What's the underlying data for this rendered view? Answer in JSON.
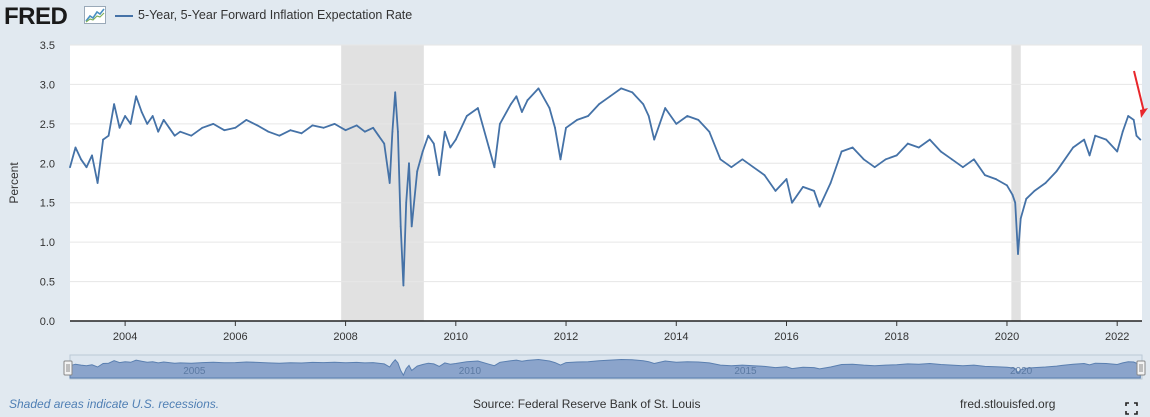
{
  "header": {
    "logo_text": "FRED",
    "legend_label": "5-Year, 5-Year Forward Inflation Expectation Rate"
  },
  "footer": {
    "recession_note": "Shaded areas indicate U.S. recessions.",
    "source": "Source: Federal Reserve Bank of St. Louis",
    "site": "fred.stlouisfed.org"
  },
  "colors": {
    "line": "#4572a7",
    "recession": "#e1e1e1",
    "annotation_arrow": "#e8262b",
    "navigator_fill": "#7c98c4"
  },
  "icons": [
    "fred-logo-graph-icon",
    "fullscreen-icon",
    "navigator-handle-icon"
  ],
  "chart_data": {
    "type": "line",
    "title": "5-Year, 5-Year Forward Inflation Expectation Rate",
    "xlabel": "",
    "ylabel": "Percent",
    "xlim": [
      2003.0,
      2022.45
    ],
    "ylim": [
      0.0,
      3.5
    ],
    "y_ticks": [
      {
        "v": 0.0,
        "label": "0.0"
      },
      {
        "v": 0.5,
        "label": "0.5"
      },
      {
        "v": 1.0,
        "label": "1.0"
      },
      {
        "v": 1.5,
        "label": "1.5"
      },
      {
        "v": 2.0,
        "label": "2.0"
      },
      {
        "v": 2.5,
        "label": "2.5"
      },
      {
        "v": 3.0,
        "label": "3.0"
      },
      {
        "v": 3.5,
        "label": "3.5"
      }
    ],
    "x_ticks": [
      {
        "v": 2004,
        "label": "2004"
      },
      {
        "v": 2006,
        "label": "2006"
      },
      {
        "v": 2008,
        "label": "2008"
      },
      {
        "v": 2010,
        "label": "2010"
      },
      {
        "v": 2012,
        "label": "2012"
      },
      {
        "v": 2014,
        "label": "2014"
      },
      {
        "v": 2016,
        "label": "2016"
      },
      {
        "v": 2018,
        "label": "2018"
      },
      {
        "v": 2020,
        "label": "2020"
      },
      {
        "v": 2022,
        "label": "2022"
      }
    ],
    "navigator_labels": [
      {
        "v": 2005,
        "label": "2005"
      },
      {
        "v": 2010,
        "label": "2010"
      },
      {
        "v": 2015,
        "label": "2015"
      },
      {
        "v": 2020,
        "label": "2020"
      }
    ],
    "recessions": [
      {
        "start": 2007.92,
        "end": 2009.42
      },
      {
        "start": 2020.08,
        "end": 2020.25
      }
    ],
    "series": [
      {
        "name": "5-Year, 5-Year Forward Inflation Expectation Rate",
        "x": [
          2003.0,
          2003.1,
          2003.2,
          2003.3,
          2003.4,
          2003.5,
          2003.6,
          2003.7,
          2003.8,
          2003.9,
          2004.0,
          2004.1,
          2004.2,
          2004.3,
          2004.4,
          2004.5,
          2004.6,
          2004.7,
          2004.8,
          2004.9,
          2005.0,
          2005.2,
          2005.4,
          2005.6,
          2005.8,
          2006.0,
          2006.2,
          2006.4,
          2006.6,
          2006.8,
          2007.0,
          2007.2,
          2007.4,
          2007.6,
          2007.8,
          2008.0,
          2008.2,
          2008.35,
          2008.5,
          2008.6,
          2008.7,
          2008.8,
          2008.85,
          2008.9,
          2008.95,
          2009.0,
          2009.05,
          2009.1,
          2009.15,
          2009.2,
          2009.3,
          2009.4,
          2009.5,
          2009.6,
          2009.7,
          2009.8,
          2009.9,
          2010.0,
          2010.2,
          2010.4,
          2010.6,
          2010.7,
          2010.8,
          2011.0,
          2011.1,
          2011.2,
          2011.3,
          2011.5,
          2011.7,
          2011.8,
          2011.9,
          2012.0,
          2012.2,
          2012.4,
          2012.6,
          2012.8,
          2013.0,
          2013.2,
          2013.4,
          2013.5,
          2013.6,
          2013.8,
          2014.0,
          2014.2,
          2014.4,
          2014.6,
          2014.8,
          2015.0,
          2015.2,
          2015.4,
          2015.6,
          2015.8,
          2016.0,
          2016.1,
          2016.3,
          2016.5,
          2016.6,
          2016.8,
          2017.0,
          2017.2,
          2017.4,
          2017.6,
          2017.8,
          2018.0,
          2018.2,
          2018.4,
          2018.6,
          2018.8,
          2019.0,
          2019.2,
          2019.4,
          2019.6,
          2019.8,
          2020.0,
          2020.1,
          2020.15,
          2020.2,
          2020.25,
          2020.35,
          2020.5,
          2020.7,
          2020.9,
          2021.0,
          2021.2,
          2021.4,
          2021.5,
          2021.6,
          2021.8,
          2022.0,
          2022.1,
          2022.2,
          2022.3,
          2022.35,
          2022.42
        ],
        "y": [
          1.95,
          2.2,
          2.05,
          1.95,
          2.1,
          1.75,
          2.3,
          2.35,
          2.75,
          2.45,
          2.6,
          2.5,
          2.85,
          2.65,
          2.5,
          2.6,
          2.4,
          2.55,
          2.45,
          2.35,
          2.4,
          2.35,
          2.45,
          2.5,
          2.42,
          2.45,
          2.55,
          2.48,
          2.4,
          2.35,
          2.42,
          2.38,
          2.48,
          2.45,
          2.5,
          2.42,
          2.48,
          2.4,
          2.45,
          2.35,
          2.25,
          1.75,
          2.4,
          2.9,
          2.4,
          1.2,
          0.45,
          1.5,
          2.0,
          1.2,
          1.9,
          2.15,
          2.35,
          2.25,
          1.85,
          2.4,
          2.2,
          2.3,
          2.6,
          2.7,
          2.2,
          1.95,
          2.5,
          2.75,
          2.85,
          2.65,
          2.8,
          2.95,
          2.7,
          2.45,
          2.05,
          2.45,
          2.55,
          2.6,
          2.75,
          2.85,
          2.95,
          2.9,
          2.75,
          2.6,
          2.3,
          2.7,
          2.5,
          2.6,
          2.55,
          2.4,
          2.05,
          1.95,
          2.05,
          1.95,
          1.85,
          1.65,
          1.8,
          1.5,
          1.7,
          1.65,
          1.45,
          1.75,
          2.15,
          2.2,
          2.05,
          1.95,
          2.05,
          2.1,
          2.25,
          2.2,
          2.3,
          2.15,
          2.05,
          1.95,
          2.05,
          1.85,
          1.8,
          1.72,
          1.6,
          1.5,
          0.85,
          1.3,
          1.55,
          1.65,
          1.75,
          1.9,
          2.0,
          2.2,
          2.3,
          2.1,
          2.35,
          2.3,
          2.15,
          2.4,
          2.6,
          2.55,
          2.35,
          2.3
        ]
      }
    ]
  }
}
